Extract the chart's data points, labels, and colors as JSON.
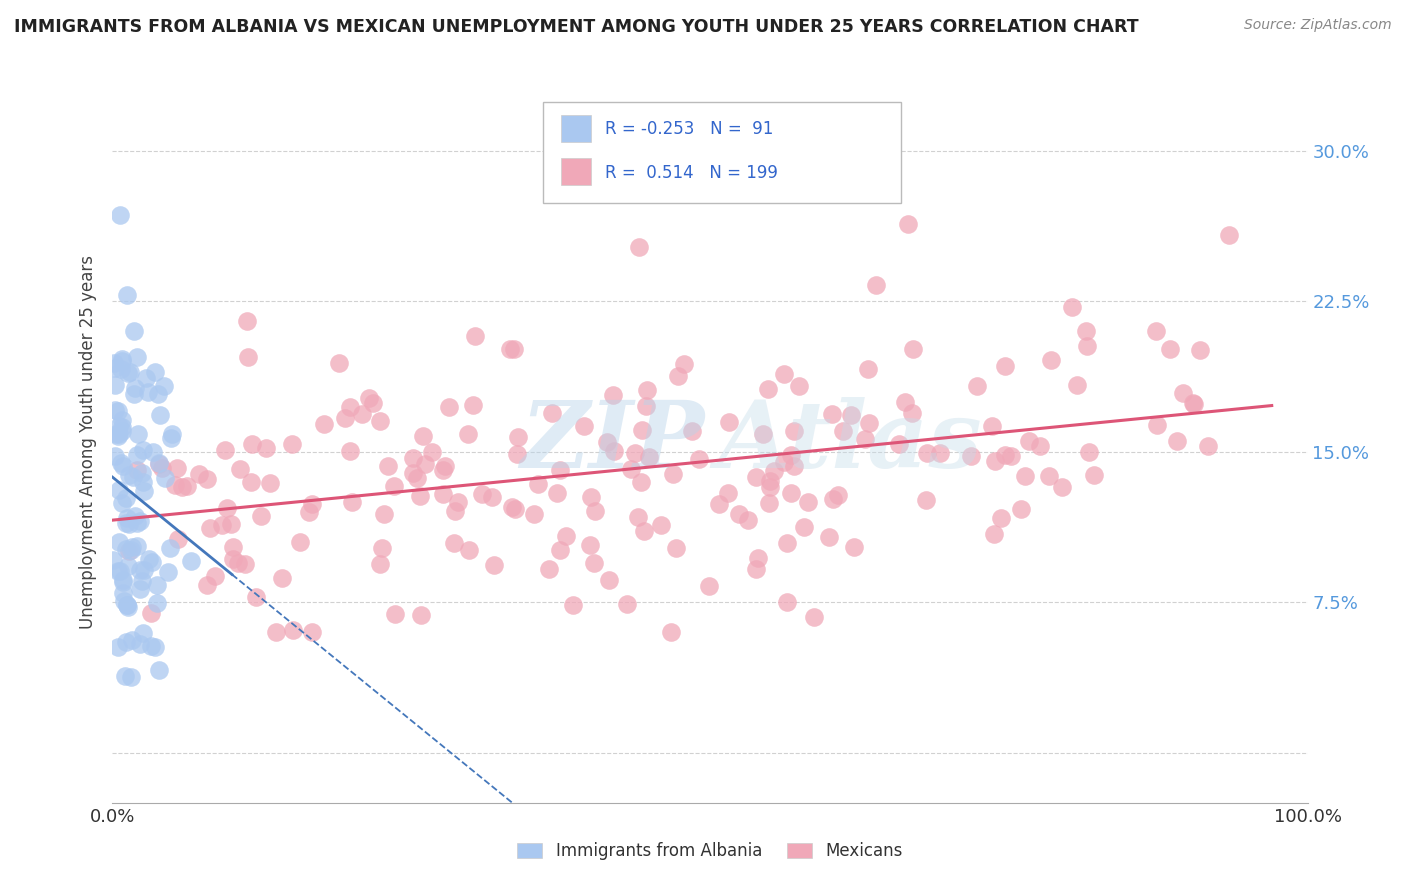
{
  "title": "IMMIGRANTS FROM ALBANIA VS MEXICAN UNEMPLOYMENT AMONG YOUTH UNDER 25 YEARS CORRELATION CHART",
  "source": "Source: ZipAtlas.com",
  "ylabel": "Unemployment Among Youth under 25 years",
  "xlim": [
    0,
    1.0
  ],
  "ylim": [
    -0.025,
    0.335
  ],
  "yticks": [
    0.0,
    0.075,
    0.15,
    0.225,
    0.3
  ],
  "xticks": [
    0.0,
    1.0
  ],
  "xtick_labels": [
    "0.0%",
    "100.0%"
  ],
  "ytick_labels_right": [
    "",
    "7.5%",
    "15.0%",
    "22.5%",
    "30.0%"
  ],
  "albania_R": -0.253,
  "albania_N": 91,
  "mexican_R": 0.514,
  "mexican_N": 199,
  "albania_color": "#aac8f0",
  "mexican_color": "#f0a8b8",
  "albania_line_color": "#4477bb",
  "mexican_line_color": "#dd5577",
  "grid_color": "#cccccc",
  "background_color": "#ffffff",
  "legend_albania": "Immigrants from Albania",
  "legend_mexican": "Mexicans",
  "title_color": "#222222",
  "source_color": "#888888",
  "tick_color_right": "#5599dd",
  "tick_color_bottom": "#333333"
}
